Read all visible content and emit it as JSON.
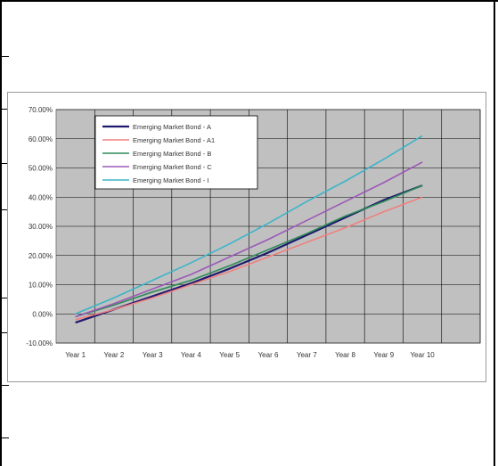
{
  "chart_data": {
    "type": "line",
    "title": "",
    "xlabel": "",
    "ylabel": "",
    "categories": [
      "Year 1",
      "Year 2",
      "Year 3",
      "Year 4",
      "Year 5",
      "Year 6",
      "Year 7",
      "Year 8",
      "Year 9",
      "Year 10"
    ],
    "ylim": [
      -10,
      70
    ],
    "yticks": [
      "-10.00%",
      "0.00%",
      "10.00%",
      "20.00%",
      "30.00%",
      "40.00%",
      "50.00%",
      "60.00%",
      "70.00%"
    ],
    "grid": true,
    "plot_background": "#c0c0c0",
    "legend_position": "top-left",
    "series": [
      {
        "name": "Emerging Market Bond - A",
        "color": "#1f1a6e",
        "values": [
          -3,
          1.5,
          6,
          10.5,
          15.5,
          21,
          27,
          33,
          39,
          44
        ]
      },
      {
        "name": "Emerging Market Bond - A1",
        "color": "#f08080",
        "values": [
          -2,
          1.5,
          5.5,
          10,
          14.5,
          19.5,
          24.5,
          29.5,
          35,
          40
        ]
      },
      {
        "name": "Emerging Market Bond - B",
        "color": "#2e8b57",
        "values": [
          -1,
          3,
          7.5,
          11.5,
          16.5,
          22,
          27.5,
          33.5,
          38.5,
          44
        ]
      },
      {
        "name": "Emerging Market Bond - C",
        "color": "#9b59b6",
        "values": [
          -1,
          3.5,
          8.5,
          13.5,
          19.5,
          25.5,
          32,
          38.5,
          45,
          52
        ]
      },
      {
        "name": "Emerging Market Bond - I",
        "color": "#3cb4c8",
        "values": [
          0,
          5.5,
          11.5,
          17.5,
          24,
          31,
          38.5,
          45.5,
          53,
          61
        ]
      }
    ]
  }
}
